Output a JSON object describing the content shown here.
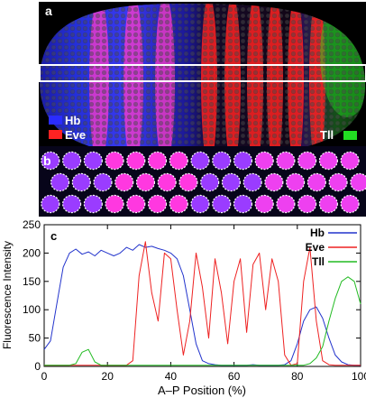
{
  "panel_a": {
    "letter": "a",
    "legend": [
      {
        "label": "Hb",
        "color": "#2a2cff"
      },
      {
        "label": "Eve",
        "color": "#ff2222"
      },
      {
        "label": "Tll",
        "color": "#22dd22"
      }
    ]
  },
  "panel_b": {
    "letter": "b"
  },
  "panel_c": {
    "letter": "c"
  },
  "colors": {
    "hb": "#2233ff",
    "eve": "#ff2222",
    "tll": "#22cc22",
    "pink": "#ff3cc8"
  },
  "chart_data": {
    "type": "line",
    "xlabel": "A–P Position (%)",
    "ylabel": "Fluorescence Intensity",
    "xlim": [
      0,
      100
    ],
    "ylim": [
      0,
      250
    ],
    "xticks": [
      "0",
      "20",
      "40",
      "60",
      "80",
      "100"
    ],
    "yticks": [
      "0",
      "50",
      "100",
      "150",
      "200",
      "250"
    ],
    "legend_position": "top-right",
    "x": [
      0,
      2,
      4,
      6,
      8,
      10,
      12,
      14,
      16,
      18,
      20,
      22,
      24,
      26,
      28,
      30,
      32,
      34,
      36,
      38,
      40,
      42,
      44,
      46,
      48,
      50,
      52,
      54,
      56,
      58,
      60,
      62,
      64,
      66,
      68,
      70,
      72,
      74,
      76,
      78,
      80,
      82,
      84,
      86,
      88,
      90,
      92,
      94,
      96,
      98,
      100
    ],
    "series": [
      {
        "name": "Hb",
        "color": "#2233cc",
        "values": [
          30,
          45,
          110,
          175,
          200,
          207,
          198,
          202,
          195,
          205,
          200,
          195,
          200,
          210,
          205,
          215,
          210,
          212,
          208,
          205,
          200,
          190,
          160,
          100,
          40,
          10,
          5,
          3,
          2,
          2,
          2,
          2,
          2,
          3,
          2,
          2,
          2,
          2,
          3,
          10,
          40,
          80,
          100,
          105,
          85,
          50,
          20,
          8,
          3,
          2,
          2
        ]
      },
      {
        "name": "Eve",
        "color": "#ee2222",
        "values": [
          2,
          2,
          2,
          2,
          2,
          2,
          2,
          2,
          2,
          2,
          2,
          2,
          2,
          2,
          10,
          160,
          220,
          130,
          80,
          200,
          190,
          100,
          20,
          80,
          200,
          140,
          50,
          190,
          130,
          40,
          150,
          190,
          60,
          180,
          200,
          100,
          190,
          150,
          20,
          2,
          5,
          150,
          210,
          80,
          10,
          3,
          2,
          2,
          2,
          2,
          2
        ]
      },
      {
        "name": "Tll",
        "color": "#22bb22",
        "values": [
          2,
          2,
          2,
          2,
          2,
          5,
          25,
          30,
          8,
          2,
          2,
          2,
          2,
          2,
          2,
          2,
          2,
          2,
          2,
          2,
          2,
          2,
          2,
          2,
          2,
          2,
          2,
          2,
          2,
          2,
          2,
          2,
          2,
          2,
          2,
          2,
          2,
          2,
          2,
          2,
          2,
          2,
          5,
          15,
          35,
          80,
          120,
          150,
          158,
          150,
          110
        ]
      }
    ]
  }
}
